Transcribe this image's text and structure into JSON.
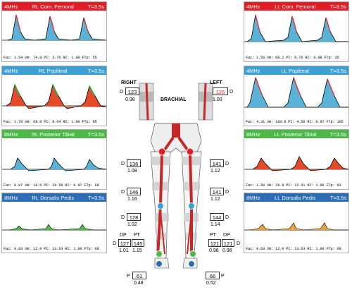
{
  "colors": {
    "red": "#e21d25",
    "blue_light": "#3b9fd8",
    "green": "#4cb848",
    "blue_dark": "#2d6db5"
  },
  "panels": {
    "rcf": {
      "freq": "4MHz",
      "name": "Rt. Com. Femoral",
      "time": "T=3.5s",
      "meas": "Fac: 1.54  Vm: 74.8  PI: 3.76  RI: 1.00  FTp: 55"
    },
    "lcf": {
      "freq": "4MHz",
      "name": "Lt. Com. Femoral",
      "time": "T=3.5s",
      "meas": "Fac: 1.56  Vm: 68.2  PI: 6.76  RI: 0.98  FTp: 35"
    },
    "rpop": {
      "freq": "4MHz",
      "name": "Rt. Popliteal",
      "time": "T=3.5s",
      "meas": "Fac: 1.78  Vm: 68.8  PI: 9.04  RI: 1.00  FTp: 95"
    },
    "lpop": {
      "freq": "4MHz",
      "name": "Lt. Popliteal",
      "time": "T=3.5s",
      "meas": "Fac: 4.31  Vm: 166.8  PI: 4.56  RI: 0.97  FTp: 105"
    },
    "rpt": {
      "freq": "8MHz",
      "name": "Rt. Posterior Tibial",
      "time": "T=3.5s",
      "meas": "Fac: 0.97  Vm: 18.6  PI: 29.58  RI: 0.97  FTp: 68"
    },
    "lpt": {
      "freq": "8MHz",
      "name": "Lt. Posterior Tibial",
      "time": "T=3.5s",
      "meas": "Fac: 1.50  Vm: 29.9  PI: 12.31  RI: 1.00  FTp: 93"
    },
    "rdp": {
      "freq": "8MHz",
      "name": "Rt. Dorsalis Pedis",
      "time": "T=3.5s",
      "meas": "Fac: 0.83  Vm: 12.0  PI: 13.63  RI: 1.00  FTp: 68"
    },
    "ldp": {
      "freq": "8MHz",
      "name": "Lt. Dorsalis Pedis",
      "time": "T=3.5s",
      "meas": "Fac: 0.63  Vm: 12.0  PI: 13.63  RI: 1.00  FTp: 68"
    }
  },
  "center": {
    "right_label": "RIGHT",
    "left_label": "LEFT",
    "brachial_label": "BRACHIAL",
    "d": "D",
    "p": "P",
    "dp": "DP",
    "pt": "PT",
    "r_brachial": "123",
    "r_brachial_idx": "0.98",
    "l_brachial": "126",
    "l_brachial_idx": "1.00",
    "r_thigh_hi": "136",
    "r_thigh_hi_idx": "1.08",
    "l_thigh_hi": "141",
    "l_thigh_hi_idx": "1.12",
    "r_thigh_lo": "146",
    "r_thigh_lo_idx": "1.16",
    "l_thigh_lo": "141",
    "l_thigh_lo_idx": "1.12",
    "r_calf": "128",
    "r_calf_idx": "1.02",
    "l_calf": "144",
    "l_calf_idx": "1.14",
    "r_dp": "127",
    "r_pt": "145",
    "r_dp_idx": "1.01",
    "r_pt_idx": "1.15",
    "l_pt": "121",
    "l_dp": "121",
    "l_pt_idx": "0.96",
    "l_dp_idx": "0.96",
    "r_toe": "61",
    "r_toe_idx": "0.48",
    "l_toe": "66",
    "l_toe_idx": "0.52"
  }
}
